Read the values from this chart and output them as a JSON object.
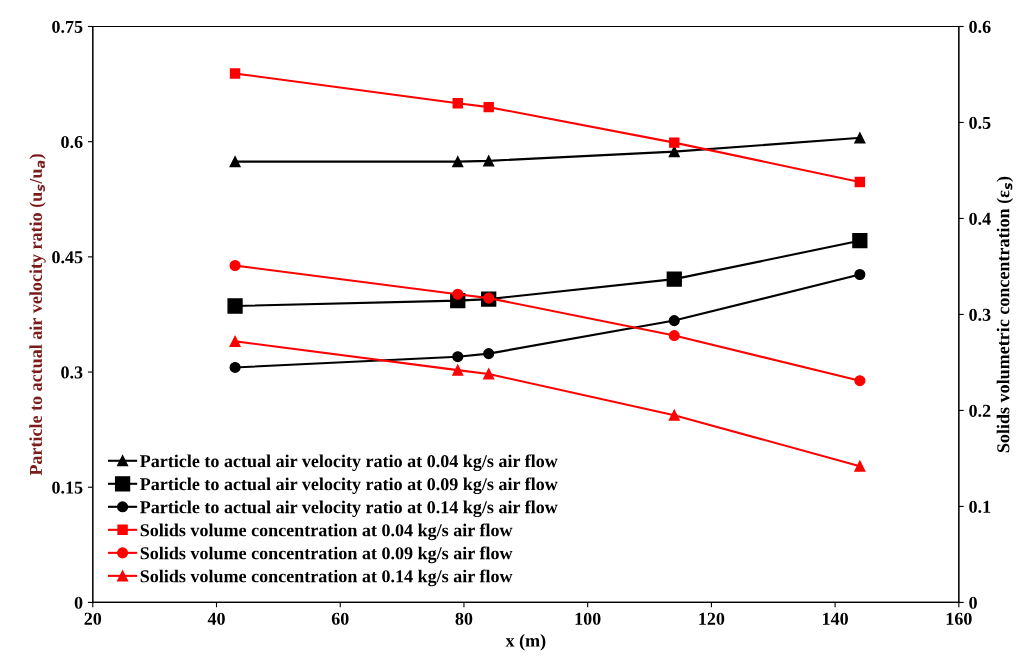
{
  "chart_data": {
    "type": "line",
    "xlabel": "x (m)",
    "ylabel": "Particle to actual air velocity ratio (u$_{s}$/u$_{a}$)",
    "y2label": "Solids volumetric concentration (ε$_{s}$)",
    "x": [
      43,
      79,
      84,
      114,
      144
    ],
    "xlim": [
      20,
      160
    ],
    "xticks": [
      20,
      40,
      60,
      80,
      100,
      120,
      140,
      160
    ],
    "ylim": [
      0,
      0.75
    ],
    "yticks": [
      0,
      0.15,
      0.3,
      0.45,
      0.6,
      0.75
    ],
    "y2lim": [
      0,
      0.6
    ],
    "y2ticks": [
      0,
      0.1,
      0.2,
      0.3,
      0.4,
      0.5,
      0.6
    ],
    "grid": false,
    "legend": "bottom left",
    "line_style": "solid",
    "series": [
      {
        "name": "Particle to actual air velocity ratio at 0.04 kg/s air flow",
        "color": "#000000",
        "marker": "triangle",
        "values": [
          0.574,
          0.574,
          0.575,
          0.587,
          0.605
        ]
      },
      {
        "name": "Particle to actual air velocity ratio at 0.09 kg/s air flow",
        "color": "#000000",
        "marker": "square",
        "values": [
          0.386,
          0.393,
          0.395,
          0.421,
          0.471
        ]
      },
      {
        "name": "Particle to actual air velocity ratio at 0.14 kg/s air flow",
        "color": "#000000",
        "marker": "circle",
        "values": [
          0.306,
          0.32,
          0.324,
          0.367,
          0.427
        ]
      },
      {
        "name": "Solids volume concentration at 0.04 kg/s air flow",
        "color": "#ff0000",
        "marker": "square",
        "axis": "y2",
        "values": [
          0.551,
          0.52,
          0.516,
          0.479,
          0.438
        ]
      },
      {
        "name": "Solids volume concentration at 0.09 kg/s air flow",
        "color": "#ff0000",
        "marker": "circle",
        "axis": "y2",
        "values": [
          0.351,
          0.321,
          0.317,
          0.278,
          0.231
        ]
      },
      {
        "name": "Solids volume concentration at 0.14 kg/s air flow",
        "color": "#ff0000",
        "marker": "triangle",
        "axis": "y2",
        "values": [
          0.272,
          0.242,
          0.238,
          0.195,
          0.142
        ]
      }
    ]
  }
}
